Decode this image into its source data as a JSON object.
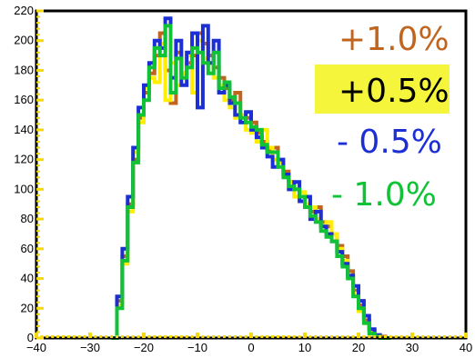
{
  "chart_data": {
    "type": "line",
    "title": "",
    "xlabel": "",
    "ylabel": "",
    "xlim": [
      -40,
      40
    ],
    "ylim": [
      0,
      220
    ],
    "x_ticks": [
      "−40",
      "−30",
      "−20",
      "−10",
      "0",
      "10",
      "20",
      "30",
      "40"
    ],
    "y_ticks": [
      "0",
      "20",
      "40",
      "60",
      "80",
      "100",
      "120",
      "140",
      "160",
      "180",
      "200",
      "220"
    ],
    "x_tick_values": [
      -40,
      -30,
      -20,
      -10,
      0,
      10,
      20,
      30,
      40
    ],
    "y_tick_values": [
      0,
      20,
      40,
      60,
      80,
      100,
      120,
      140,
      160,
      180,
      200,
      220
    ],
    "grid": false,
    "legend_position": "right",
    "highlight_color": "#f5f53c",
    "x": [
      -26,
      -25,
      -24,
      -23,
      -22,
      -21,
      -20,
      -19,
      -18,
      -17,
      -16,
      -15,
      -14,
      -13,
      -12,
      -11,
      -10,
      -9,
      -8,
      -7,
      -6,
      -5,
      -4,
      -3,
      -2,
      -1,
      0,
      1,
      2,
      3,
      4,
      5,
      6,
      7,
      8,
      9,
      10,
      11,
      12,
      13,
      14,
      15,
      16,
      17,
      18,
      19,
      20,
      21,
      22,
      23,
      24,
      25
    ],
    "series": [
      {
        "name": "+1.0%",
        "color": "#c0651f",
        "values": [
          0,
          25,
          55,
          90,
          120,
          148,
          165,
          178,
          190,
          205,
          180,
          158,
          192,
          178,
          185,
          190,
          205,
          198,
          190,
          182,
          175,
          168,
          160,
          165,
          150,
          148,
          145,
          138,
          132,
          126,
          128,
          118,
          112,
          105,
          100,
          98,
          95,
          85,
          88,
          78,
          75,
          70,
          62,
          55,
          45,
          32,
          22,
          12,
          5,
          2,
          1,
          0
        ]
      },
      {
        "name": "+0.5%",
        "color": "#ffee00",
        "values": [
          0,
          22,
          50,
          85,
          125,
          145,
          168,
          175,
          172,
          198,
          160,
          185,
          170,
          178,
          190,
          165,
          200,
          188,
          185,
          175,
          170,
          160,
          155,
          148,
          150,
          140,
          138,
          132,
          140,
          128,
          120,
          118,
          110,
          105,
          95,
          98,
          90,
          88,
          80,
          75,
          78,
          70,
          60,
          52,
          40,
          30,
          18,
          10,
          4,
          2,
          0,
          0
        ]
      },
      {
        "name": "- 0.5%",
        "color": "#1c2fd4",
        "values": [
          0,
          28,
          60,
          95,
          128,
          155,
          170,
          185,
          200,
          195,
          215,
          175,
          200,
          170,
          192,
          205,
          155,
          210,
          185,
          200,
          165,
          170,
          158,
          150,
          145,
          152,
          140,
          135,
          128,
          122,
          115,
          120,
          110,
          100,
          105,
          92,
          95,
          80,
          85,
          75,
          70,
          65,
          58,
          50,
          42,
          35,
          25,
          15,
          6,
          2,
          0,
          0
        ]
      },
      {
        "name": "- 1.0%",
        "color": "#10c235",
        "values": [
          0,
          20,
          52,
          88,
          118,
          150,
          160,
          182,
          195,
          190,
          210,
          165,
          188,
          175,
          182,
          195,
          192,
          185,
          178,
          192,
          168,
          172,
          162,
          158,
          148,
          145,
          142,
          140,
          130,
          125,
          125,
          115,
          108,
          102,
          100,
          95,
          88,
          82,
          78,
          72,
          68,
          65,
          55,
          48,
          40,
          28,
          20,
          10,
          3,
          1,
          0,
          0
        ]
      }
    ]
  },
  "legend": {
    "items": [
      {
        "label": "+1.0%",
        "color": "#c0651f",
        "highlight": false
      },
      {
        "label": "+0.5%",
        "color": "#000000",
        "highlight": true
      },
      {
        "label": "- 0.5%",
        "color": "#1c2fd4",
        "highlight": false
      },
      {
        "label": "- 1.0%",
        "color": "#10c235",
        "highlight": false
      }
    ]
  }
}
